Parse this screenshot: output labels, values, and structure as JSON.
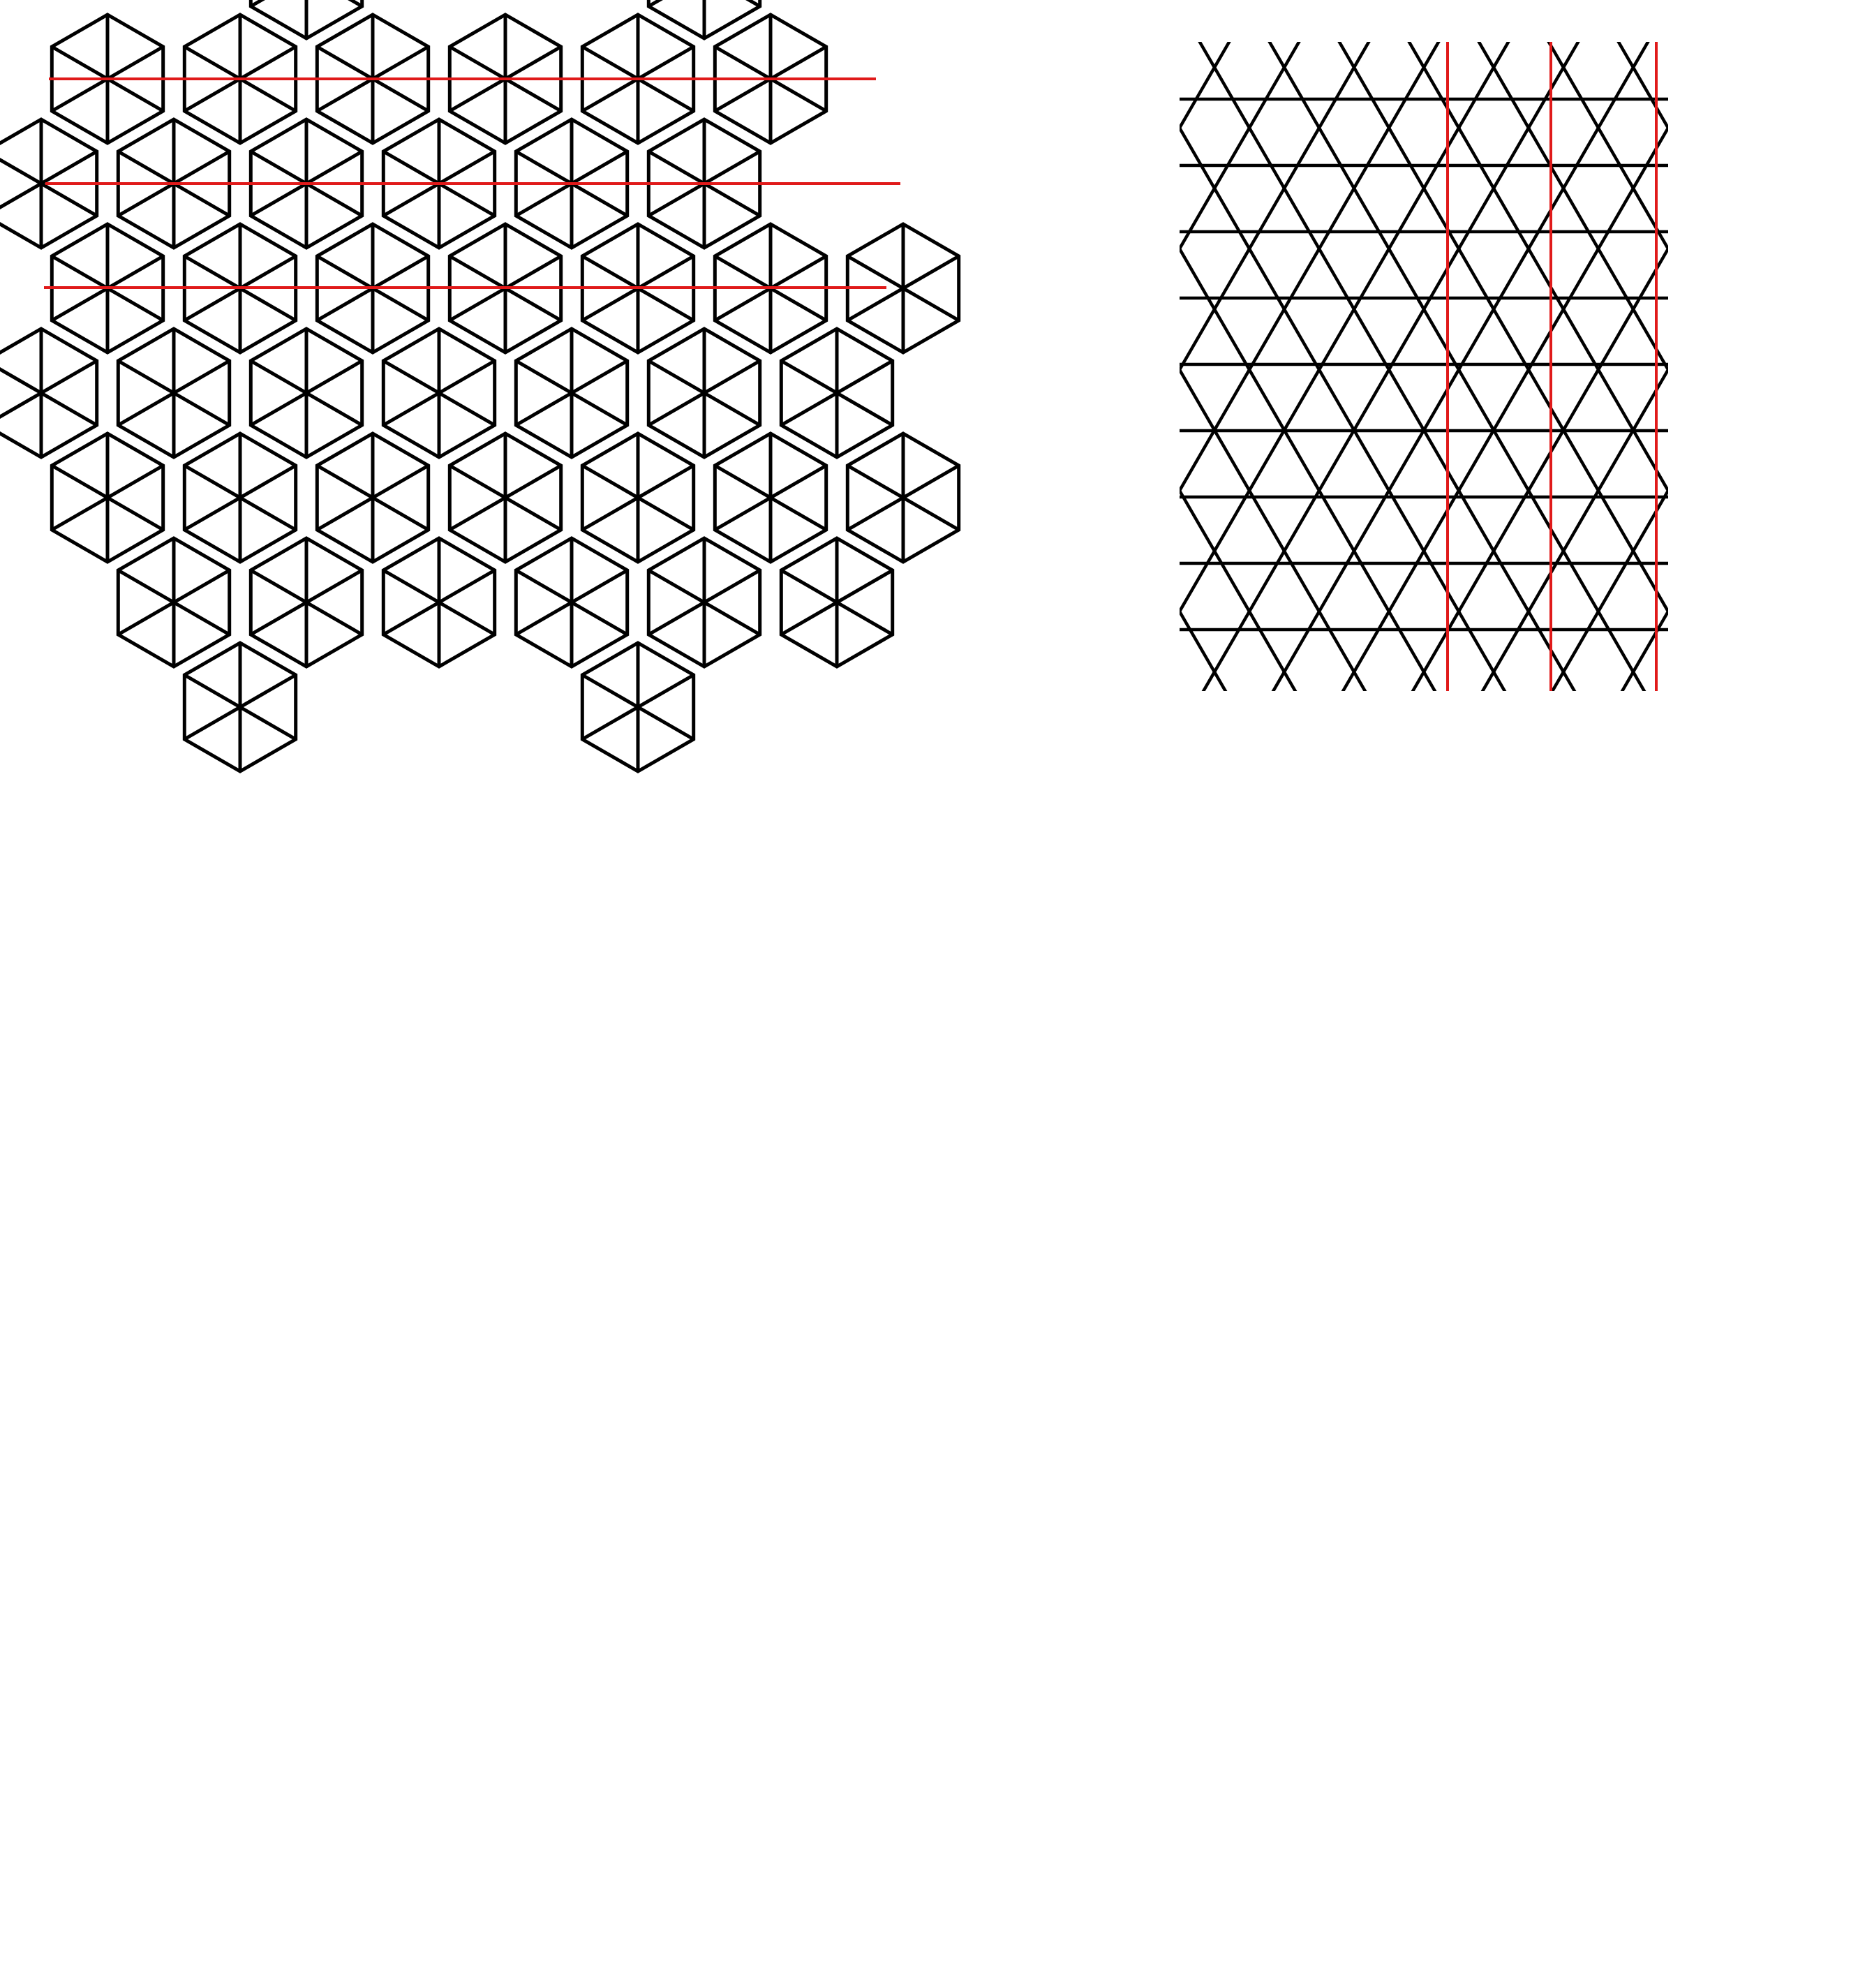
{
  "colors": {
    "background": "#ffffff",
    "line": "#000000",
    "accent": "#e01a1a"
  },
  "panels": [
    {
      "name": "hexagon-tiling-panel",
      "shape": "hexagon subdivided into six triangles",
      "red_lines": "horizontal",
      "red_line_count": 3
    },
    {
      "name": "triangle-lattice-panel",
      "shape": "triangular lattice",
      "red_lines": "vertical",
      "red_line_count": 3
    }
  ]
}
